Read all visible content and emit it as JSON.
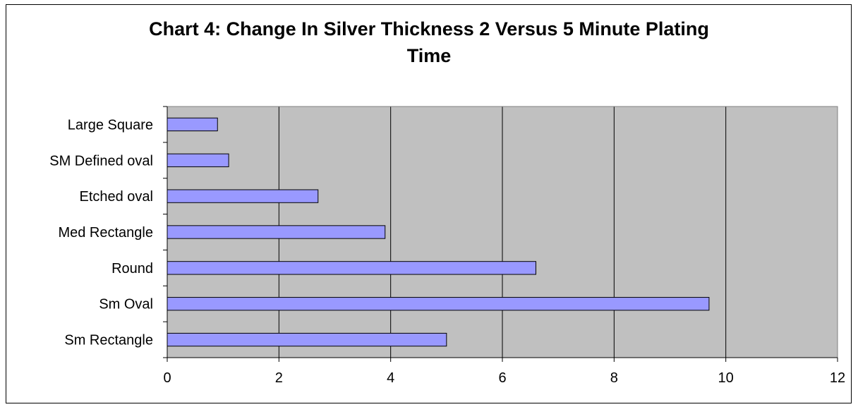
{
  "chart_data": {
    "type": "bar",
    "orientation": "horizontal",
    "title_lines": [
      "Chart 4: Change In Silver Thickness 2 Versus 5 Minute Plating",
      "Time"
    ],
    "categories": [
      "Large Square",
      "SM Defined oval",
      "Etched oval",
      "Med Rectangle",
      "Round",
      "Sm Oval",
      "Sm Rectangle"
    ],
    "values": [
      0.9,
      1.1,
      2.7,
      3.9,
      6.6,
      9.7,
      5.0
    ],
    "xlim": [
      0,
      12
    ],
    "xticks": [
      0,
      2,
      4,
      6,
      8,
      10,
      12
    ],
    "xtick_labels": [
      "0",
      "2",
      "4",
      "6",
      "8",
      "10",
      "12"
    ],
    "grid": true,
    "legend": "none",
    "colors": {
      "bar_fill": "#9999ff",
      "bar_stroke": "#000000",
      "plot_background": "#c0c0c0",
      "gridline": "#000000"
    }
  }
}
